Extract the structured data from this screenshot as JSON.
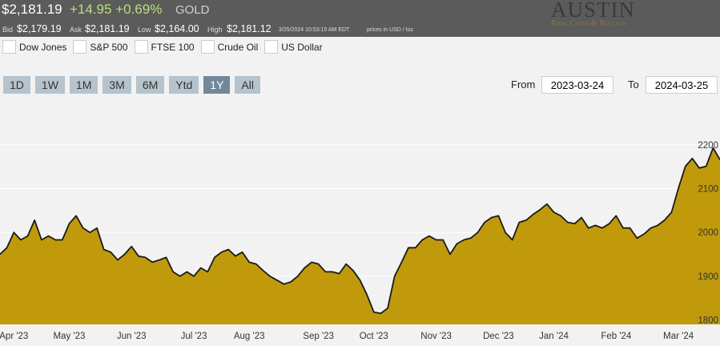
{
  "header": {
    "price": "$2,181.19",
    "change": "+14.95 +0.69%",
    "symbol": "GOLD",
    "bid_label": "Bid",
    "bid": "$2,179.19",
    "ask_label": "Ask",
    "ask": "$2,181.19",
    "low_label": "Low",
    "low": "$2,164.00",
    "high_label": "High",
    "high": "$2,181.12",
    "timestamp": "3/25/2024 10:53:15 AM EDT",
    "units": "prices in USD / toz",
    "logo": "AUSTIN",
    "logo_sub": "Rare Coins & Bullion"
  },
  "compare": [
    "Dow Jones",
    "S&P 500",
    "FTSE 100",
    "Crude Oil",
    "US Dollar"
  ],
  "ranges": [
    "1D",
    "1W",
    "1M",
    "3M",
    "6M",
    "Ytd",
    "1Y",
    "All"
  ],
  "active_range": 6,
  "from_label": "From",
  "from": "2023-03-24",
  "to_label": "To",
  "to": "2024-03-25",
  "chart_data": {
    "type": "area",
    "color": "#c09a0a",
    "line_color": "#1a1a1a",
    "grid": true,
    "categories": [
      null,
      null,
      "Apr '23",
      null,
      null,
      null,
      null,
      null,
      null,
      null,
      "May '23",
      null,
      null,
      null,
      null,
      null,
      null,
      null,
      null,
      "Jun '23",
      null,
      null,
      null,
      null,
      null,
      null,
      null,
      null,
      "Jul '23",
      null,
      null,
      null,
      null,
      null,
      null,
      null,
      "Aug '23",
      null,
      null,
      null,
      null,
      null,
      null,
      null,
      null,
      null,
      "Sep '23",
      null,
      null,
      null,
      null,
      null,
      null,
      null,
      "Oct '23",
      null,
      null,
      null,
      null,
      null,
      null,
      null,
      null,
      "Nov '23",
      null,
      null,
      null,
      null,
      null,
      null,
      null,
      null,
      "Dec '23",
      null,
      null,
      null,
      null,
      null,
      null,
      null,
      "Jan '24",
      null,
      null,
      null,
      null,
      null,
      null,
      null,
      null,
      "Feb '24",
      null,
      null,
      null,
      null,
      null,
      null,
      null,
      null,
      "Mar '24",
      null,
      null,
      null,
      null,
      null,
      null
    ],
    "values": [
      1950,
      1965,
      2000,
      1983,
      1992,
      2028,
      1983,
      1992,
      1983,
      1983,
      2020,
      2038,
      2010,
      2000,
      2010,
      1961,
      1955,
      1937,
      1950,
      1968,
      1946,
      1943,
      1932,
      1937,
      1943,
      1910,
      1900,
      1910,
      1900,
      1919,
      1910,
      1943,
      1955,
      1961,
      1946,
      1955,
      1932,
      1928,
      1913,
      1900,
      1891,
      1882,
      1887,
      1900,
      1919,
      1932,
      1928,
      1910,
      1910,
      1906,
      1928,
      1913,
      1891,
      1858,
      1818,
      1815,
      1827,
      1900,
      1932,
      1965,
      1965,
      1983,
      1992,
      1983,
      1983,
      1950,
      1974,
      1983,
      1987,
      2000,
      2023,
      2034,
      2038,
      2000,
      1983,
      2023,
      2028,
      2041,
      2052,
      2065,
      2046,
      2038,
      2023,
      2020,
      2034,
      2010,
      2016,
      2010,
      2020,
      2038,
      2010,
      2010,
      1987,
      1996,
      2010,
      2016,
      2028,
      2046,
      2101,
      2151,
      2169,
      2147,
      2151,
      2193,
      2166
    ],
    "ylim": [
      1790,
      2293
    ],
    "yticks": [
      1800,
      1900,
      2000,
      2100,
      2200
    ]
  }
}
